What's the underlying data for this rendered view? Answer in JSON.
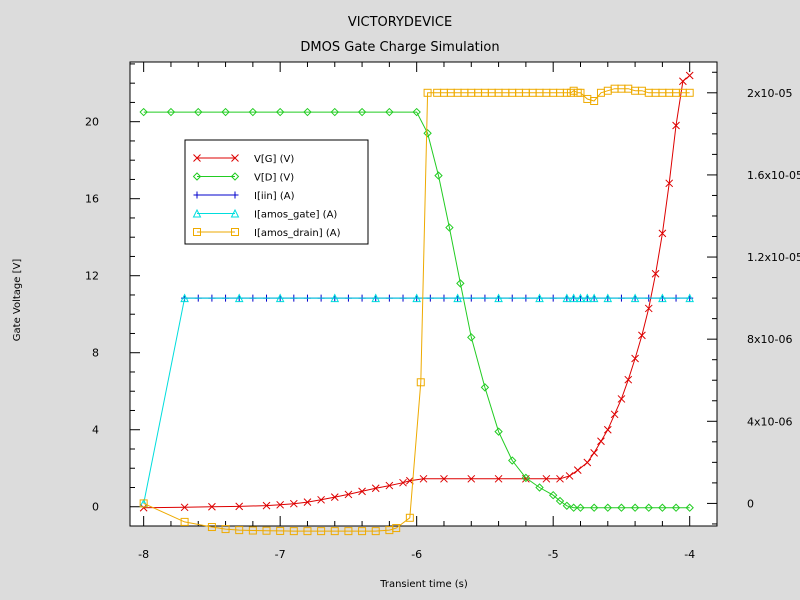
{
  "chart_data": {
    "type": "line",
    "title": "VICTORYDEVICE",
    "subtitle": "DMOS Gate Charge Simulation",
    "xlabel": "Transient time (s)",
    "ylabel": "Gate Voltage [V]",
    "xlim": [
      -8.1,
      -3.8
    ],
    "ylim": [
      -1.0,
      23.1
    ],
    "y2lim": [
      -1.1e-06,
      2.15e-05
    ],
    "x_tick_labels": [
      "-8",
      "-7",
      "-6",
      "-5",
      "-4"
    ],
    "y_tick_labels": [
      "0",
      "4",
      "8",
      "12",
      "16",
      "20"
    ],
    "y2_tick_labels": [
      "0",
      "4x10-06",
      "8x10-06",
      "1.2x10-05",
      "1.6x10-05",
      "2x10-05"
    ],
    "grid": false,
    "legend_position": "top-left",
    "series": [
      {
        "name": "V[G] (V)",
        "axis": "left",
        "color": "#dd0000",
        "marker": "x",
        "x": [
          -8.0,
          -7.7,
          -7.5,
          -7.3,
          -7.1,
          -7.0,
          -6.9,
          -6.8,
          -6.7,
          -6.6,
          -6.5,
          -6.4,
          -6.3,
          -6.2,
          -6.1,
          -6.05,
          -5.95,
          -5.8,
          -5.6,
          -5.4,
          -5.2,
          -5.05,
          -4.95,
          -4.88,
          -4.82,
          -4.75,
          -4.7,
          -4.65,
          -4.6,
          -4.55,
          -4.5,
          -4.45,
          -4.4,
          -4.35,
          -4.3,
          -4.25,
          -4.2,
          -4.15,
          -4.1,
          -4.05,
          -4.0
        ],
        "y": [
          -0.05,
          -0.03,
          0.0,
          0.02,
          0.06,
          0.1,
          0.16,
          0.24,
          0.36,
          0.5,
          0.64,
          0.8,
          0.96,
          1.1,
          1.25,
          1.35,
          1.45,
          1.45,
          1.45,
          1.45,
          1.45,
          1.45,
          1.45,
          1.6,
          1.9,
          2.3,
          2.8,
          3.4,
          4.0,
          4.8,
          5.6,
          6.6,
          7.7,
          8.9,
          10.3,
          12.1,
          14.2,
          16.8,
          19.8,
          22.1,
          22.4
        ]
      },
      {
        "name": "V[D] (V)",
        "axis": "left",
        "color": "#22cc22",
        "marker": "diamond",
        "x": [
          -8.0,
          -7.8,
          -7.6,
          -7.4,
          -7.2,
          -7.0,
          -6.8,
          -6.6,
          -6.4,
          -6.2,
          -6.0,
          -5.92,
          -5.84,
          -5.76,
          -5.68,
          -5.6,
          -5.5,
          -5.4,
          -5.3,
          -5.2,
          -5.1,
          -5.0,
          -4.95,
          -4.9,
          -4.85,
          -4.8,
          -4.7,
          -4.6,
          -4.5,
          -4.4,
          -4.3,
          -4.2,
          -4.1,
          -4.0
        ],
        "y": [
          20.5,
          20.5,
          20.5,
          20.5,
          20.5,
          20.5,
          20.5,
          20.5,
          20.5,
          20.5,
          20.5,
          19.4,
          17.2,
          14.5,
          11.6,
          8.8,
          6.2,
          3.9,
          2.4,
          1.5,
          1.0,
          0.6,
          0.3,
          0.05,
          -0.05,
          -0.05,
          -0.05,
          -0.05,
          -0.05,
          -0.05,
          -0.05,
          -0.05,
          -0.05,
          -0.05
        ]
      },
      {
        "name": "I[iin] (A)",
        "axis": "right",
        "color": "#0000cc",
        "marker": "plus",
        "x": [
          -7.7,
          -7.6,
          -7.5,
          -7.4,
          -7.3,
          -7.2,
          -7.1,
          -7.0,
          -6.9,
          -6.8,
          -6.7,
          -6.6,
          -6.5,
          -6.4,
          -6.3,
          -6.2,
          -6.1,
          -6.0,
          -5.9,
          -5.8,
          -5.7,
          -5.6,
          -5.5,
          -5.4,
          -5.3,
          -5.2,
          -5.1,
          -5.0,
          -4.9,
          -4.85,
          -4.8,
          -4.75,
          -4.7,
          -4.6,
          -4.5,
          -4.4,
          -4.3,
          -4.2,
          -4.1,
          -4.0
        ],
        "y": [
          1e-05,
          1e-05,
          1e-05,
          1e-05,
          1e-05,
          1e-05,
          1e-05,
          1e-05,
          1e-05,
          1e-05,
          1e-05,
          1e-05,
          1e-05,
          1e-05,
          1e-05,
          1e-05,
          1e-05,
          1e-05,
          1e-05,
          1e-05,
          1e-05,
          1e-05,
          1e-05,
          1e-05,
          1e-05,
          1e-05,
          1e-05,
          1e-05,
          1e-05,
          1e-05,
          1e-05,
          1e-05,
          1e-05,
          1e-05,
          1e-05,
          1e-05,
          1e-05,
          1e-05,
          1e-05,
          1e-05
        ]
      },
      {
        "name": "I[amos_gate] (A)",
        "axis": "right",
        "color": "#00dddd",
        "marker": "triangle",
        "x": [
          -8.0,
          -7.7,
          -7.3,
          -7.0,
          -6.6,
          -6.3,
          -6.0,
          -5.7,
          -5.4,
          -5.1,
          -4.9,
          -4.85,
          -4.8,
          -4.75,
          -4.7,
          -4.6,
          -4.4,
          -4.2,
          -4.0
        ],
        "y": [
          0.0,
          1e-05,
          1e-05,
          1e-05,
          1e-05,
          1e-05,
          1e-05,
          1e-05,
          1e-05,
          1e-05,
          1e-05,
          1e-05,
          1e-05,
          1e-05,
          1e-05,
          1e-05,
          1e-05,
          1e-05,
          1e-05
        ]
      },
      {
        "name": "I[amos_drain] (A)",
        "axis": "right",
        "color": "#eeaa00",
        "marker": "square",
        "x": [
          -8.0,
          -7.7,
          -7.5,
          -7.4,
          -7.3,
          -7.2,
          -7.1,
          -7.0,
          -6.9,
          -6.8,
          -6.7,
          -6.6,
          -6.5,
          -6.4,
          -6.3,
          -6.2,
          -6.15,
          -6.05,
          -5.97,
          -5.92,
          -5.85,
          -5.8,
          -5.75,
          -5.7,
          -5.65,
          -5.6,
          -5.55,
          -5.5,
          -5.45,
          -5.4,
          -5.35,
          -5.3,
          -5.25,
          -5.2,
          -5.15,
          -5.1,
          -5.05,
          -5.0,
          -4.95,
          -4.9,
          -4.87,
          -4.85,
          -4.82,
          -4.8,
          -4.75,
          -4.7,
          -4.65,
          -4.6,
          -4.55,
          -4.5,
          -4.45,
          -4.4,
          -4.35,
          -4.3,
          -4.25,
          -4.2,
          -4.15,
          -4.1,
          -4.05,
          -4.0
        ],
        "y": [
          0.0,
          -9e-07,
          -1.15e-06,
          -1.25e-06,
          -1.3e-06,
          -1.32e-06,
          -1.33e-06,
          -1.34e-06,
          -1.35e-06,
          -1.35e-06,
          -1.35e-06,
          -1.35e-06,
          -1.35e-06,
          -1.35e-06,
          -1.35e-06,
          -1.3e-06,
          -1.2e-06,
          -7e-07,
          5.9e-06,
          2e-05,
          2e-05,
          2e-05,
          2e-05,
          2e-05,
          2e-05,
          2e-05,
          2e-05,
          2e-05,
          2e-05,
          2e-05,
          2e-05,
          2e-05,
          2e-05,
          2e-05,
          2e-05,
          2e-05,
          2e-05,
          2e-05,
          2e-05,
          2e-05,
          2e-05,
          2.01e-05,
          2e-05,
          2e-05,
          1.97e-05,
          1.96e-05,
          2e-05,
          2.01e-05,
          2.02e-05,
          2.02e-05,
          2.02e-05,
          2.01e-05,
          2.01e-05,
          2e-05,
          2e-05,
          2e-05,
          2e-05,
          2e-05,
          2e-05,
          2e-05
        ]
      }
    ]
  }
}
